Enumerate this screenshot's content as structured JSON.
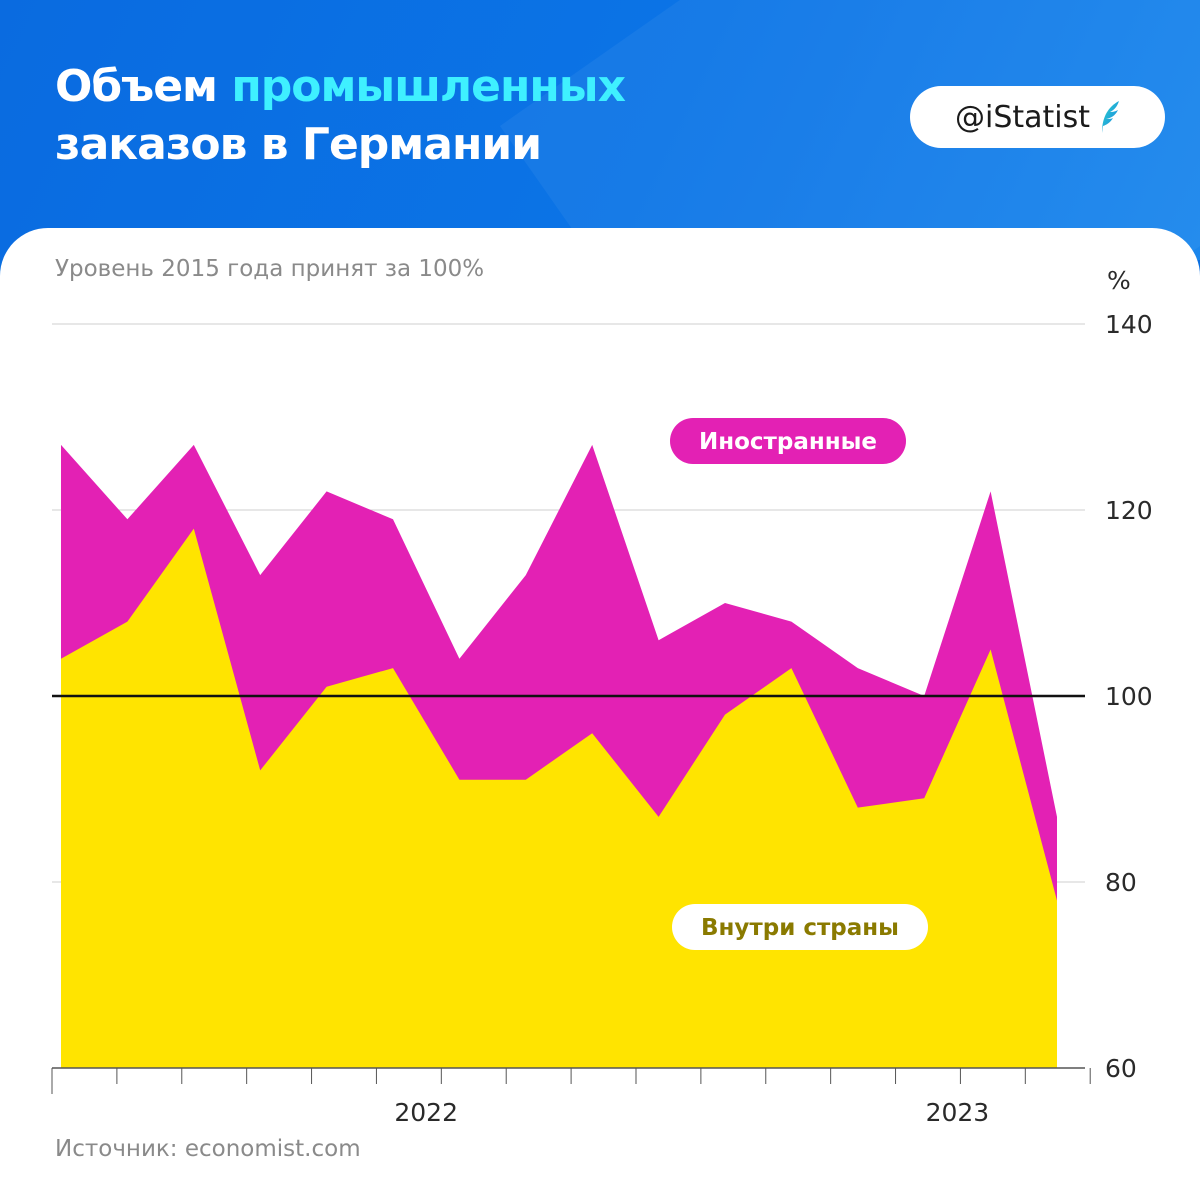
{
  "header": {
    "title_part1": "Объем ",
    "title_accent": "промышленных",
    "title_line2": "заказов в Германии",
    "brand": "@iStatist"
  },
  "subtitle": "Уровень 2015 года принят за 100%",
  "unit": "%",
  "source": "Источник: economist.com",
  "colors": {
    "header_bg": "#0a6fe0",
    "title_accent": "#3ff0ff",
    "foreign": "#e321b4",
    "domestic": "#ffe400",
    "domestic_label": "#8a7a00",
    "baseline": "#111111"
  },
  "chart_data": {
    "type": "area",
    "title": "Объем промышленных заказов в Германии",
    "subtitle": "Уровень 2015 года принят за 100%",
    "ylabel": "%",
    "ylim": [
      60,
      140
    ],
    "yticks": [
      60,
      80,
      100,
      120,
      140
    ],
    "reference_line": 100,
    "x_labels": [
      {
        "label": "2022",
        "index": 5.5
      },
      {
        "label": "2023",
        "index": 13.5
      }
    ],
    "stacked": false,
    "series": [
      {
        "name": "Иностранные",
        "values": [
          127,
          119,
          127,
          113,
          122,
          119,
          104,
          113,
          127,
          106,
          110,
          108,
          103,
          100,
          122,
          87
        ]
      },
      {
        "name": "Внутри страны",
        "values": [
          104,
          108,
          118,
          92,
          101,
          103,
          91,
          91,
          96,
          87,
          98,
          103,
          88,
          89,
          105,
          78
        ]
      }
    ]
  }
}
